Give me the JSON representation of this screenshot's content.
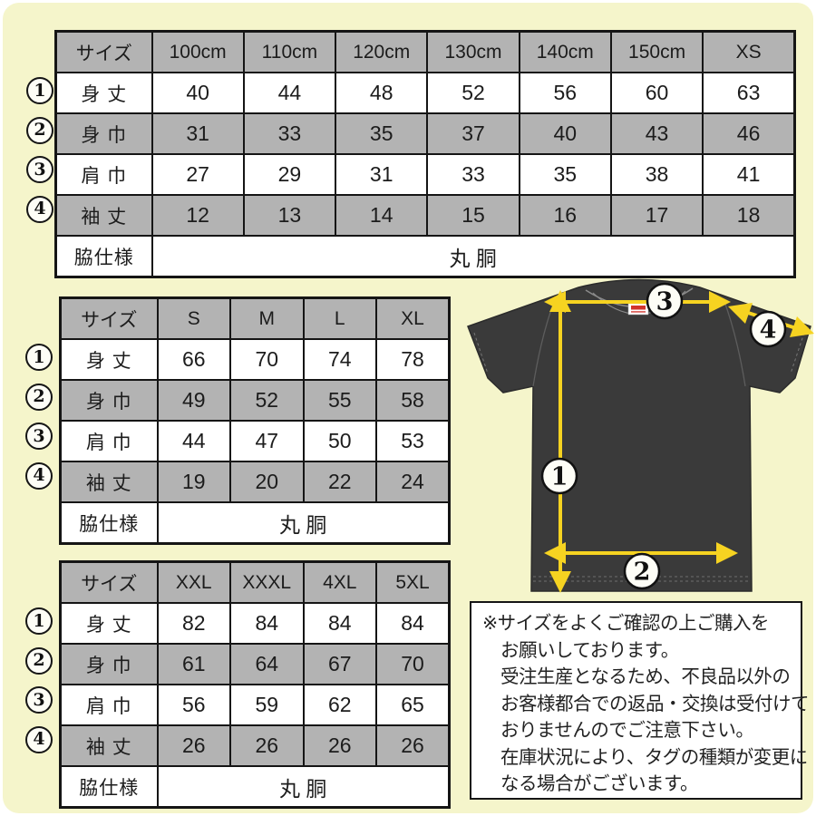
{
  "colors": {
    "background": "#f5f5cb",
    "table_gray": "#b3b3b3",
    "border_black": "#151515",
    "arrow_yellow": "#f6d321",
    "shirt_dark": "#3a3a3a",
    "tag_red": "#d1342c"
  },
  "tables": [
    {
      "name": "kids-xs",
      "header": [
        "サイズ",
        "100cm",
        "110cm",
        "120cm",
        "130cm",
        "140cm",
        "150cm",
        "XS"
      ],
      "rows": [
        {
          "marker": "1",
          "label": "身 丈",
          "values": [
            "40",
            "44",
            "48",
            "52",
            "56",
            "60",
            "63"
          ]
        },
        {
          "marker": "2",
          "label": "身 巾",
          "values": [
            "31",
            "33",
            "35",
            "37",
            "40",
            "43",
            "46"
          ]
        },
        {
          "marker": "3",
          "label": "肩 巾",
          "values": [
            "27",
            "29",
            "31",
            "33",
            "35",
            "38",
            "41"
          ]
        },
        {
          "marker": "4",
          "label": "袖 丈",
          "values": [
            "12",
            "13",
            "14",
            "15",
            "16",
            "17",
            "18"
          ]
        }
      ],
      "spec_label": "脇仕様",
      "spec_value": "丸 胴"
    },
    {
      "name": "s-xl",
      "header": [
        "サイズ",
        "S",
        "M",
        "L",
        "XL"
      ],
      "rows": [
        {
          "marker": "1",
          "label": "身 丈",
          "values": [
            "66",
            "70",
            "74",
            "78"
          ]
        },
        {
          "marker": "2",
          "label": "身 巾",
          "values": [
            "49",
            "52",
            "55",
            "58"
          ]
        },
        {
          "marker": "3",
          "label": "肩 巾",
          "values": [
            "44",
            "47",
            "50",
            "53"
          ]
        },
        {
          "marker": "4",
          "label": "袖 丈",
          "values": [
            "19",
            "20",
            "22",
            "24"
          ]
        }
      ],
      "spec_label": "脇仕様",
      "spec_value": "丸 胴"
    },
    {
      "name": "xxl-5xl",
      "header": [
        "サイズ",
        "XXL",
        "XXXL",
        "4XL",
        "5XL"
      ],
      "rows": [
        {
          "marker": "1",
          "label": "身 丈",
          "values": [
            "82",
            "84",
            "84",
            "84"
          ]
        },
        {
          "marker": "2",
          "label": "身 巾",
          "values": [
            "61",
            "64",
            "67",
            "70"
          ]
        },
        {
          "marker": "3",
          "label": "肩 巾",
          "values": [
            "56",
            "59",
            "62",
            "65"
          ]
        },
        {
          "marker": "4",
          "label": "袖 丈",
          "values": [
            "26",
            "26",
            "26",
            "26"
          ]
        }
      ],
      "spec_label": "脇仕様",
      "spec_value": "丸 胴"
    }
  ],
  "diagram": {
    "markers": {
      "body_length": "1",
      "body_width": "2",
      "shoulder_width": "3",
      "sleeve_length": "4"
    }
  },
  "note": {
    "lines": [
      "※サイズをよくご確認の上ご購入を",
      "お願いしております。",
      "受注生産となるため、不良品以外の",
      "お客様都合での返品・交換は受付けて",
      "おりませんのでご注意下さい。",
      "在庫状況により、タグの種類が変更に",
      "なる場合がございます。"
    ]
  }
}
